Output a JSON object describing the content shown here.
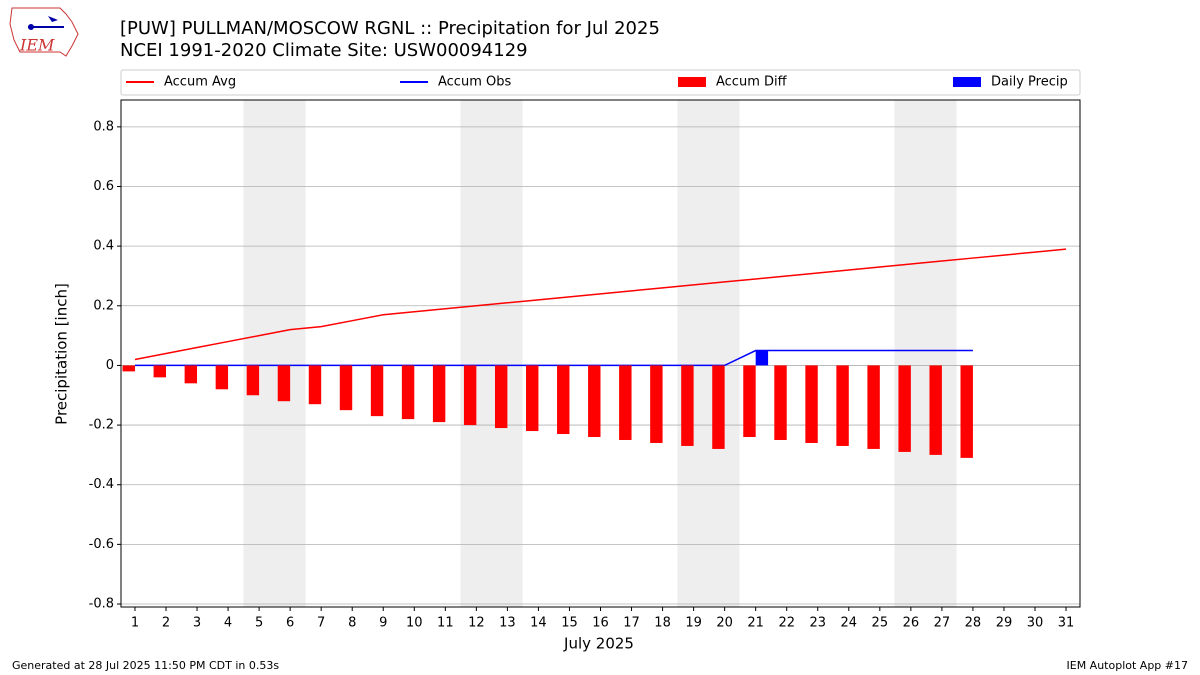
{
  "chart_data": {
    "type": "line",
    "title": "[PUW] PULLMAN/MOSCOW RGNL :: Precipitation for Jul 2025",
    "subtitle": "NCEI 1991-2020 Climate Site: USW00094129",
    "xlabel": "July 2025",
    "ylabel": "Precipitation [inch]",
    "x": [
      1,
      2,
      3,
      4,
      5,
      6,
      7,
      8,
      9,
      10,
      11,
      12,
      13,
      14,
      15,
      16,
      17,
      18,
      19,
      20,
      21,
      22,
      23,
      24,
      25,
      26,
      27,
      28,
      29,
      30,
      31
    ],
    "xlim": [
      0.55,
      31.45
    ],
    "xticks": [
      1,
      2,
      3,
      4,
      5,
      6,
      7,
      8,
      9,
      10,
      11,
      12,
      13,
      14,
      15,
      16,
      17,
      18,
      19,
      20,
      21,
      22,
      23,
      24,
      25,
      26,
      27,
      28,
      29,
      30,
      31
    ],
    "ylim": [
      -0.81,
      0.89
    ],
    "yticks": [
      -0.8,
      -0.6,
      -0.4,
      -0.2,
      0.0,
      0.2,
      0.4,
      0.6,
      0.8
    ],
    "grid": true,
    "series": [
      {
        "name": "Accum Avg",
        "kind": "line",
        "color": "#ff0000",
        "values": [
          0.02,
          0.04,
          0.06,
          0.08,
          0.1,
          0.12,
          0.13,
          0.15,
          0.17,
          0.18,
          0.19,
          0.2,
          0.21,
          0.22,
          0.23,
          0.24,
          0.25,
          0.26,
          0.27,
          0.28,
          0.29,
          0.3,
          0.31,
          0.32,
          0.33,
          0.34,
          0.35,
          0.36,
          0.37,
          0.38,
          0.39
        ]
      },
      {
        "name": "Accum Obs",
        "kind": "line",
        "color": "#0000ff",
        "values": [
          0,
          0,
          0,
          0,
          0,
          0,
          0,
          0,
          0,
          0,
          0,
          0,
          0,
          0,
          0,
          0,
          0,
          0,
          0,
          0,
          0.05,
          0.05,
          0.05,
          0.05,
          0.05,
          0.05,
          0.05,
          0.05,
          null,
          null,
          null
        ]
      },
      {
        "name": "Accum Diff",
        "kind": "bar",
        "color": "#ff0000",
        "values": [
          -0.02,
          -0.04,
          -0.06,
          -0.08,
          -0.1,
          -0.12,
          -0.13,
          -0.15,
          -0.17,
          -0.18,
          -0.19,
          -0.2,
          -0.21,
          -0.22,
          -0.23,
          -0.24,
          -0.25,
          -0.26,
          -0.27,
          -0.28,
          -0.24,
          -0.25,
          -0.26,
          -0.27,
          -0.28,
          -0.29,
          -0.3,
          -0.31,
          null,
          null,
          null
        ]
      },
      {
        "name": "Daily Precip",
        "kind": "bar",
        "color": "#0000ff",
        "values": [
          0,
          0,
          0,
          0,
          0,
          0,
          0,
          0,
          0,
          0,
          0,
          0,
          0,
          0,
          0,
          0,
          0,
          0,
          0,
          0,
          0.05,
          0,
          0,
          0,
          0,
          0,
          0,
          0,
          null,
          null,
          null
        ]
      }
    ]
  },
  "logo_text": "IEM",
  "footer_left": "Generated at 28 Jul 2025 11:50 PM CDT in 0.53s",
  "footer_right": "IEM Autoplot App #17"
}
